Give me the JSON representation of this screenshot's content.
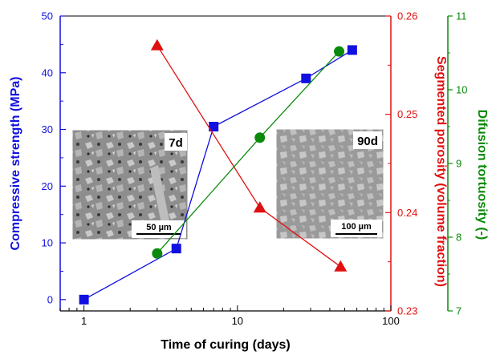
{
  "chart_data": {
    "type": "line",
    "xlabel": "Time of curing (days)",
    "xscale": "log",
    "xlim": [
      0.7,
      100
    ],
    "xticks": [
      1,
      10,
      100
    ],
    "grid": false,
    "axes": {
      "left": {
        "label": "Compressive strength (MPa)",
        "ylim": [
          -2,
          50
        ],
        "ticks": [
          0,
          10,
          20,
          30,
          40,
          50
        ],
        "color": "#1010e0"
      },
      "right1": {
        "label": "Segmented porosity (volume fraction)",
        "ylim": [
          0.23,
          0.26
        ],
        "ticks": [
          0.23,
          0.24,
          0.25,
          0.26
        ],
        "color": "#e01010"
      },
      "right2": {
        "label": "Difusion tortuosity (-)",
        "ylim": [
          7,
          11
        ],
        "ticks": [
          7,
          8,
          9,
          10,
          11
        ],
        "color": "#0a8a0a"
      }
    },
    "series": [
      {
        "axis": "left",
        "marker": "square",
        "color": "#1010e0",
        "x": [
          1,
          4,
          7,
          28,
          56
        ],
        "y": [
          0,
          9,
          30.5,
          39,
          44
        ]
      },
      {
        "axis": "right1",
        "marker": "triangle",
        "color": "#e01010",
        "x": [
          3,
          14,
          47
        ],
        "y": [
          0.257,
          0.2405,
          0.2345
        ]
      },
      {
        "axis": "right2",
        "marker": "circle",
        "color": "#0a8a0a",
        "x": [
          3,
          14,
          46
        ],
        "y": [
          7.78,
          9.35,
          10.52
        ]
      }
    ],
    "annotations": [
      {
        "label": "7d",
        "scale": "50 µm"
      },
      {
        "label": "90d",
        "scale": "100 µm"
      }
    ]
  }
}
